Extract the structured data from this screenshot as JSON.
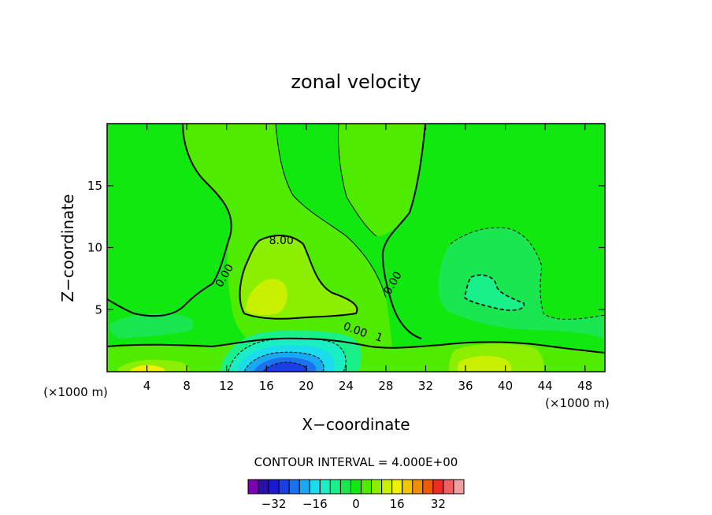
{
  "chart_data": {
    "type": "heatmap",
    "title": "zonal velocity",
    "xlabel": "X−coordinate",
    "ylabel": "Z−coordinate",
    "x_unit_left": "(×1000 m)",
    "x_unit_right": "(×1000 m)",
    "xlim": [
      0,
      50
    ],
    "ylim": [
      0,
      20
    ],
    "xticks": [
      4,
      8,
      12,
      16,
      20,
      24,
      28,
      32,
      36,
      40,
      44,
      48
    ],
    "yticks": [
      5,
      10,
      15
    ],
    "contour_interval_text": "CONTOUR INTERVAL = 4.000E+00",
    "contour_labels": [
      {
        "text": "8.00",
        "x": 17.5,
        "y": 10.3
      },
      {
        "text": "0.00",
        "x": 12.1,
        "y": 7.6
      },
      {
        "text": "0.00",
        "x": 29.0,
        "y": 7.0
      },
      {
        "text": "0.00",
        "x": 24.8,
        "y": 3.1
      },
      {
        "text": "1",
        "x": 27.2,
        "y": 2.5
      }
    ],
    "colorbar": {
      "levels": [
        -40,
        -36,
        -32,
        -28,
        -24,
        -20,
        -16,
        -12,
        -8,
        -4,
        0,
        4,
        8,
        12,
        16,
        20,
        24,
        28,
        32,
        36,
        40
      ],
      "tick_labels": [
        "−32",
        "−16",
        "0",
        "16",
        "32"
      ],
      "tick_values": [
        -32,
        -16,
        0,
        16,
        32
      ],
      "colors": [
        "#7a00b4",
        "#2a10a8",
        "#1a1ad0",
        "#1a3ee8",
        "#1a72ee",
        "#1aa8f2",
        "#1adcec",
        "#1aefc4",
        "#1af08a",
        "#1ae650",
        "#10e810",
        "#50ec00",
        "#8cee00",
        "#c8f000",
        "#f0f000",
        "#f0c800",
        "#f09000",
        "#f05a00",
        "#f02a20",
        "#f06060",
        "#f0a0a0"
      ]
    },
    "regions": [
      {
        "name": "background",
        "level": 0
      },
      {
        "name": "central-plume",
        "level": 4
      },
      {
        "name": "mid-jet",
        "level": 8
      },
      {
        "name": "jet-core",
        "level": 12
      },
      {
        "name": "right-low",
        "level": -4
      },
      {
        "name": "right-low-core",
        "level": -8
      },
      {
        "name": "left-low",
        "level": -4
      },
      {
        "name": "surface-band",
        "level": 4
      },
      {
        "name": "surface-right-jet",
        "level": 8
      },
      {
        "name": "surface-right-core",
        "level": 12
      },
      {
        "name": "surface-left-jet",
        "level": 8
      },
      {
        "name": "surface-left-core",
        "level": 16
      },
      {
        "name": "vortex-outer",
        "level": -8
      },
      {
        "name": "vortex-ring-1",
        "level": -12
      },
      {
        "name": "vortex-ring-2",
        "level": -16
      },
      {
        "name": "vortex-ring-3",
        "level": -20
      },
      {
        "name": "vortex-ring-4",
        "level": -24
      },
      {
        "name": "vortex-core",
        "level": -28
      }
    ]
  }
}
